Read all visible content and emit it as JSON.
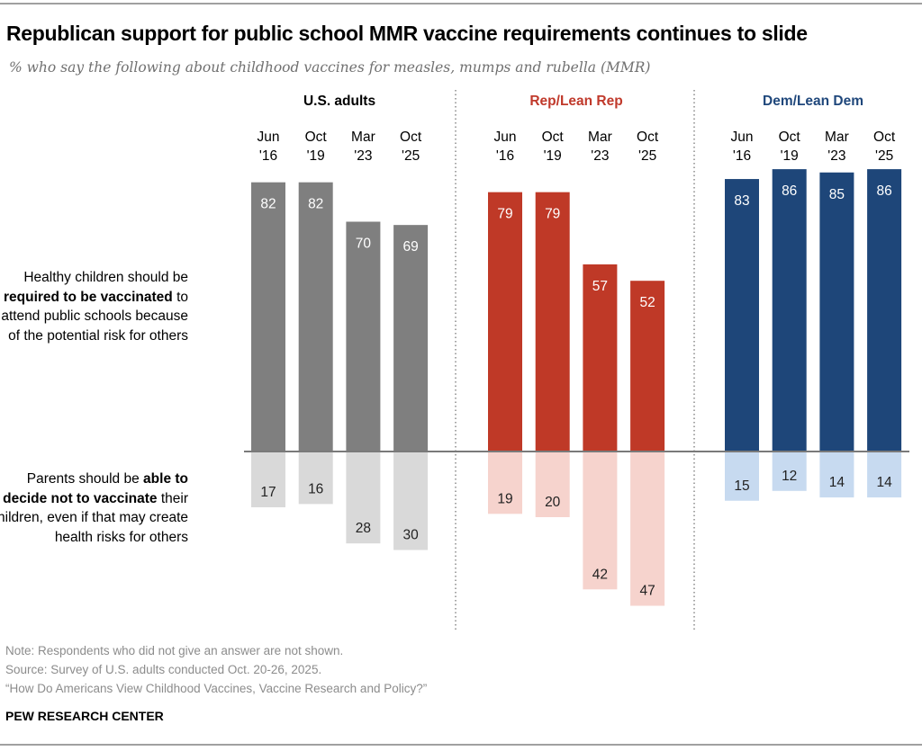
{
  "title": "Republican support for public school MMR vaccine requirements continues to slide",
  "subtitle": "% who say the following about childhood vaccines for measles, mumps and rubella (MMR)",
  "row_labels": {
    "top": {
      "pre": "Healthy children should be ",
      "bold": "required to be vaccinated",
      "post": " to attend public schools because of the potential risk for others"
    },
    "bottom": {
      "pre": "Parents should be ",
      "bold": "able to decide not to vaccinate",
      "post": " their children, even if that may create health risks for others"
    }
  },
  "footer": {
    "note": "Note: Respondents who did not give an answer are not shown.",
    "source": "Source: Survey of U.S. adults conducted Oct. 20-26, 2025.",
    "report": "“How Do Americans View Childhood Vaccines, Vaccine Research and Policy?”",
    "brand": "PEW RESEARCH CENTER"
  },
  "chart_data": {
    "type": "bar",
    "orientation": "diverging-vertical",
    "categories": [
      "Jun '16",
      "Oct '19",
      "Mar '23",
      "Oct '25"
    ],
    "category_lines": [
      [
        "Jun",
        "'16"
      ],
      [
        "Oct",
        "'19"
      ],
      [
        "Mar",
        "'23"
      ],
      [
        "Oct",
        "'25"
      ]
    ],
    "ylim": [
      -50,
      90
    ],
    "grid": false,
    "groups": [
      {
        "name": "U.S. adults",
        "label_color": "#000000",
        "color_required": "#7f7f7f",
        "color_decide": "#d9d9d9",
        "required": [
          82,
          82,
          70,
          69
        ],
        "decide": [
          17,
          16,
          28,
          30
        ]
      },
      {
        "name": "Rep/Lean Rep",
        "label_color": "#c0392b",
        "color_required": "#bf3927",
        "color_decide": "#f6d3cd",
        "required": [
          79,
          79,
          57,
          52
        ],
        "decide": [
          19,
          20,
          42,
          47
        ]
      },
      {
        "name": "Dem/Lean Dem",
        "label_color": "#1f477b",
        "color_required": "#1e4679",
        "color_decide": "#c7daf0",
        "required": [
          83,
          86,
          85,
          86
        ],
        "decide": [
          15,
          12,
          14,
          14
        ]
      }
    ]
  }
}
